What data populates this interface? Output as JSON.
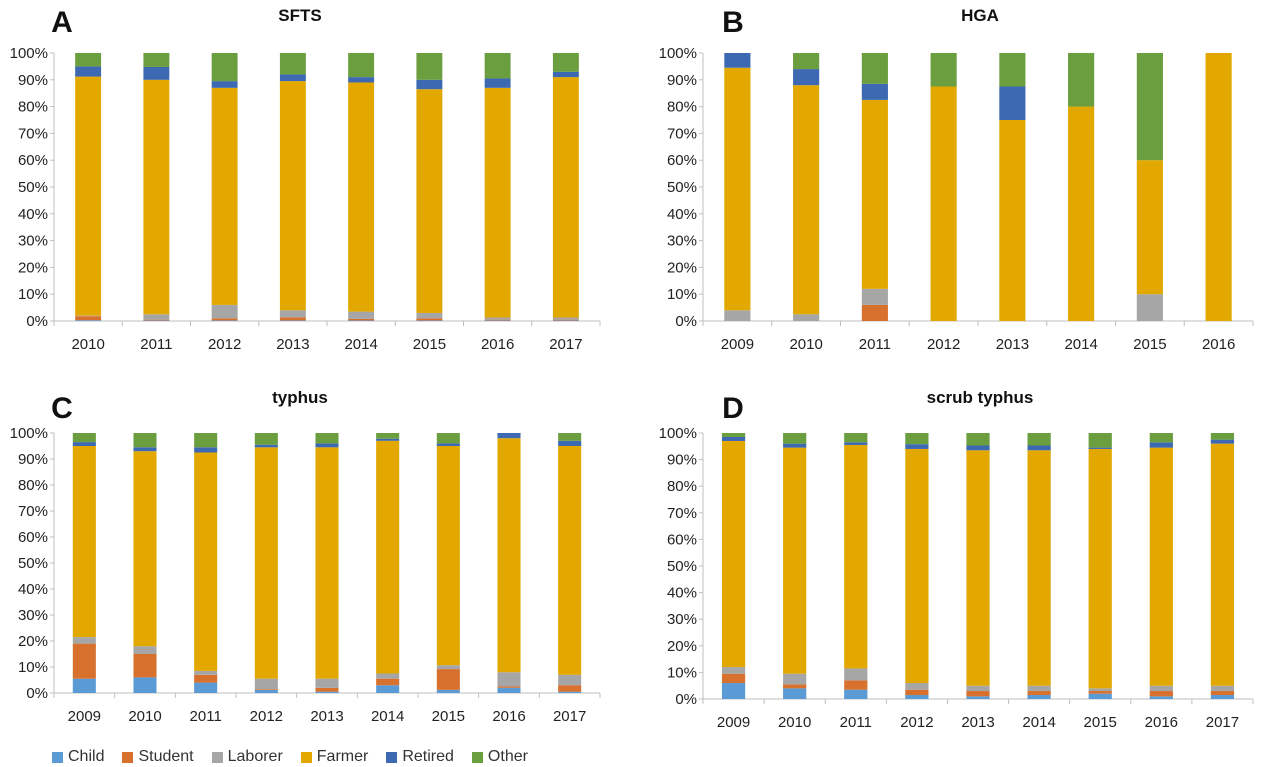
{
  "legend": [
    {
      "name": "Child",
      "color": "#5B9BD5"
    },
    {
      "name": "Student",
      "color": "#D9712E"
    },
    {
      "name": "Laborer",
      "color": "#A6A6A6"
    },
    {
      "name": "Farmer",
      "color": "#E2A800"
    },
    {
      "name": "Retired",
      "color": "#3D68B2"
    },
    {
      "name": "Other",
      "color": "#6B9E3E"
    }
  ],
  "chart_data": [
    {
      "type": "bar",
      "stacked": "percent",
      "panel_label": "A",
      "title": "SFTS",
      "ylim": [
        0,
        100
      ],
      "yticks": [
        "0%",
        "10%",
        "20%",
        "30%",
        "40%",
        "50%",
        "60%",
        "70%",
        "80%",
        "90%",
        "100%"
      ],
      "categories": [
        "2010",
        "2011",
        "2012",
        "2013",
        "2014",
        "2015",
        "2016",
        "2017"
      ],
      "series": [
        {
          "name": "Child",
          "values": [
            0.3,
            0.2,
            0.2,
            0.2,
            0.2,
            0.2,
            0.2,
            0.2
          ]
        },
        {
          "name": "Student",
          "values": [
            1.5,
            0.3,
            0.8,
            1.2,
            0.6,
            0.8,
            0.3,
            0.3
          ]
        },
        {
          "name": "Laborer",
          "values": [
            0.2,
            2,
            5,
            2.6,
            2.7,
            2,
            0.8,
            0.8
          ]
        },
        {
          "name": "Farmer",
          "values": [
            89.2,
            87.5,
            81,
            85.5,
            85.5,
            83.5,
            85.7,
            89.7
          ]
        },
        {
          "name": "Retired",
          "values": [
            3.8,
            4.8,
            2.5,
            2.5,
            2,
            3.5,
            3.5,
            2
          ]
        },
        {
          "name": "Other",
          "values": [
            5,
            5.2,
            10.5,
            8,
            9,
            10,
            9.5,
            7
          ]
        }
      ]
    },
    {
      "type": "bar",
      "stacked": "percent",
      "panel_label": "B",
      "title": "HGA",
      "ylim": [
        0,
        100
      ],
      "yticks": [
        "0%",
        "10%",
        "20%",
        "30%",
        "40%",
        "50%",
        "60%",
        "70%",
        "80%",
        "90%",
        "100%"
      ],
      "categories": [
        "2009",
        "2010",
        "2011",
        "2012",
        "2013",
        "2014",
        "2015",
        "2016"
      ],
      "series": [
        {
          "name": "Child",
          "values": [
            0,
            0,
            0,
            0,
            0,
            0,
            0,
            0
          ]
        },
        {
          "name": "Student",
          "values": [
            0,
            0,
            6,
            0,
            0,
            0,
            0,
            0
          ]
        },
        {
          "name": "Laborer",
          "values": [
            4,
            2.5,
            6,
            0,
            0,
            0,
            10,
            0
          ]
        },
        {
          "name": "Farmer",
          "values": [
            90.5,
            85.5,
            70.5,
            87.5,
            75,
            80,
            50,
            100
          ]
        },
        {
          "name": "Retired",
          "values": [
            5.5,
            6,
            6,
            0,
            12.5,
            0,
            0,
            0
          ]
        },
        {
          "name": "Other",
          "values": [
            0,
            6,
            11.5,
            12.5,
            12.5,
            20,
            40,
            0
          ]
        }
      ]
    },
    {
      "type": "bar",
      "stacked": "percent",
      "panel_label": "C",
      "title": "typhus",
      "ylim": [
        0,
        100
      ],
      "yticks": [
        "0%",
        "10%",
        "20%",
        "30%",
        "40%",
        "50%",
        "60%",
        "70%",
        "80%",
        "90%",
        "100%"
      ],
      "categories": [
        "2009",
        "2010",
        "2011",
        "2012",
        "2013",
        "2014",
        "2015",
        "2016",
        "2017"
      ],
      "series": [
        {
          "name": "Child",
          "values": [
            5.5,
            6,
            4,
            1.2,
            0.5,
            3,
            1.2,
            2,
            0.5
          ]
        },
        {
          "name": "Student",
          "values": [
            13.5,
            9,
            3,
            0.3,
            1.5,
            2.5,
            8,
            0.5,
            2.5
          ]
        },
        {
          "name": "Laborer",
          "values": [
            2.5,
            3,
            1.5,
            4,
            3.5,
            2,
            1.5,
            5.5,
            4
          ]
        },
        {
          "name": "Farmer",
          "values": [
            73.5,
            75,
            84,
            89,
            89,
            89.5,
            84.3,
            90,
            88
          ]
        },
        {
          "name": "Retired",
          "values": [
            1.5,
            1.5,
            2,
            1,
            1.5,
            0.8,
            1,
            2,
            2
          ]
        },
        {
          "name": "Other",
          "values": [
            3.5,
            5.5,
            5.5,
            4.5,
            4,
            2.2,
            4,
            0,
            3
          ]
        }
      ]
    },
    {
      "type": "bar",
      "stacked": "percent",
      "panel_label": "D",
      "title": "scrub typhus",
      "ylim": [
        0,
        100
      ],
      "yticks": [
        "0%",
        "10%",
        "20%",
        "30%",
        "40%",
        "50%",
        "60%",
        "70%",
        "80%",
        "90%",
        "100%"
      ],
      "categories": [
        "2009",
        "2010",
        "2011",
        "2012",
        "2013",
        "2014",
        "2015",
        "2016",
        "2017"
      ],
      "series": [
        {
          "name": "Child",
          "values": [
            6,
            4,
            3.5,
            1.5,
            1,
            1.5,
            2,
            1,
            1.5
          ]
        },
        {
          "name": "Student",
          "values": [
            3.5,
            1.5,
            3.5,
            2,
            2,
            1.5,
            1,
            2,
            1.5
          ]
        },
        {
          "name": "Laborer",
          "values": [
            2.5,
            4,
            4.5,
            2.5,
            2,
            2,
            1,
            2,
            2
          ]
        },
        {
          "name": "Farmer",
          "values": [
            85,
            85,
            84,
            88,
            88.5,
            88.5,
            90,
            89.5,
            91
          ]
        },
        {
          "name": "Retired",
          "values": [
            1.5,
            1.5,
            1,
            1.8,
            1.8,
            1.8,
            0.5,
            2,
            1.5
          ]
        },
        {
          "name": "Other",
          "values": [
            1.5,
            4,
            3.5,
            4.2,
            4.7,
            4.7,
            5.5,
            3.5,
            2.5
          ]
        }
      ]
    }
  ]
}
